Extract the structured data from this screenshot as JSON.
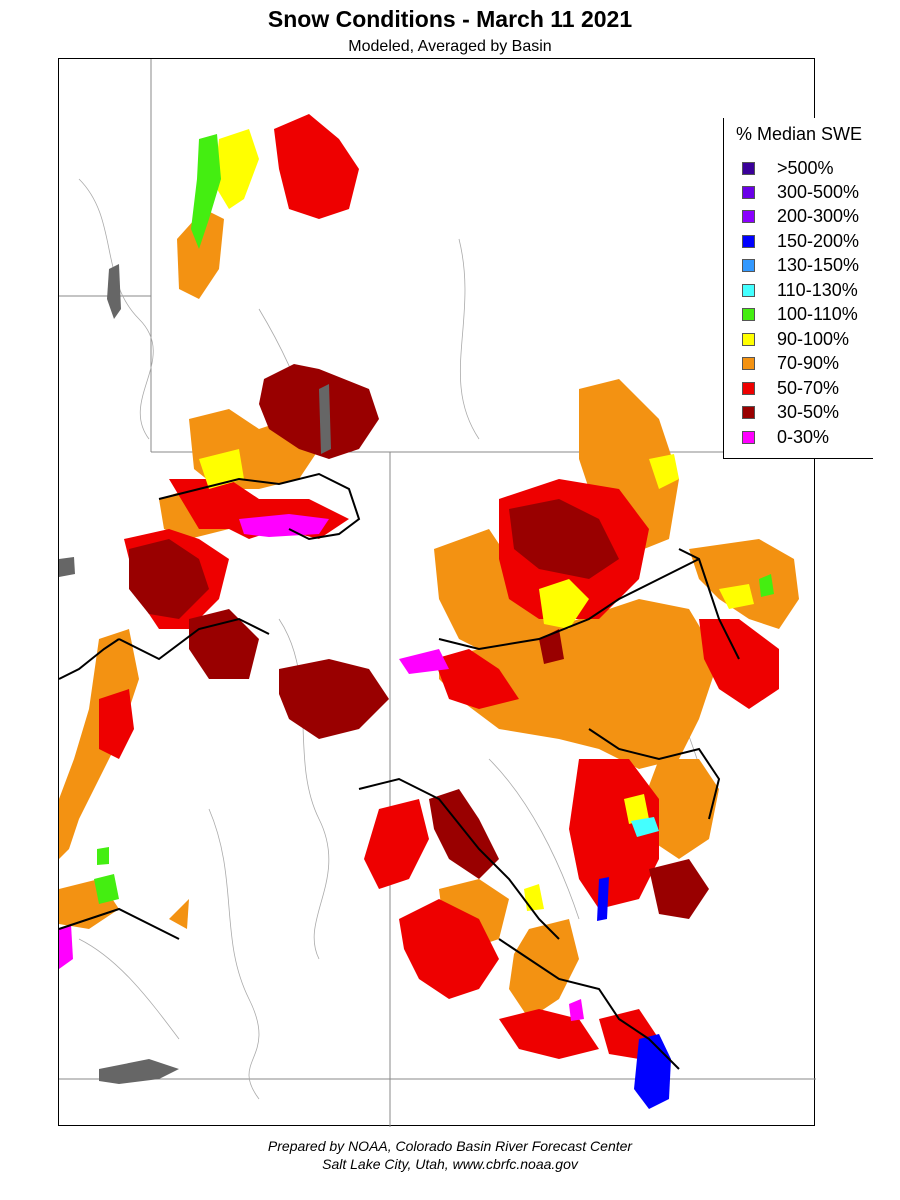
{
  "title": "Snow Conditions - March 11 2021",
  "subtitle": "Modeled, Averaged by Basin",
  "legend": {
    "title": "% Median SWE",
    "items": [
      {
        "label": ">500%",
        "color": "#3a0099"
      },
      {
        "label": "300-500%",
        "color": "#6a00e8"
      },
      {
        "label": "200-300%",
        "color": "#8a00ff"
      },
      {
        "label": "150-200%",
        "color": "#0000ff"
      },
      {
        "label": "130-150%",
        "color": "#3399ff"
      },
      {
        "label": "110-130%",
        "color": "#44ffff"
      },
      {
        "label": "100-110%",
        "color": "#44ee11"
      },
      {
        "label": "90-100%",
        "color": "#ffff00"
      },
      {
        "label": "70-90%",
        "color": "#f39212"
      },
      {
        "label": "50-70%",
        "color": "#ee0000"
      },
      {
        "label": "30-50%",
        "color": "#990000"
      },
      {
        "label": "0-30%",
        "color": "#ff00ff"
      }
    ]
  },
  "credit": {
    "line1": "Prepared by NOAA, Colorado Basin River Forecast Center",
    "line2": "Salt Lake City, Utah, www.cbrfc.noaa.gov"
  }
}
